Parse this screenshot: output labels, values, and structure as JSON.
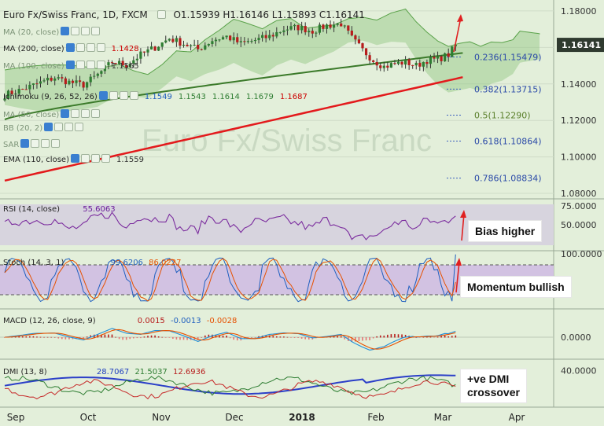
{
  "header": {
    "symbol": "Euro Fx/Swiss Franc, 1D, FXCM",
    "ohlc": "O1.15939  H1.16146  L1.15893  C1.16141"
  },
  "indicators": [
    {
      "label": "MA (20, close)"
    },
    {
      "label": "MA (200, close)",
      "values": [
        "1.1428"
      ],
      "colors": [
        "#cc0000"
      ]
    },
    {
      "label": "MA (100, close)",
      "values": [
        "1.1565"
      ],
      "colors": [
        "#333333"
      ]
    },
    {
      "label": "Ichimoku (9, 26, 52, 26)",
      "values": [
        "1.1549",
        "1.1543",
        "1.1614",
        "1.1679",
        "1.1687"
      ],
      "colors": [
        "#1f5fbf",
        "#2e7d32",
        "#2e7d32",
        "#2e7d32",
        "#cc0000"
      ]
    },
    {
      "label": "MA (50, close)"
    },
    {
      "label": "BB (20, 2)"
    },
    {
      "label": "SAR"
    },
    {
      "label": "EMA (110, close)",
      "values": [
        "1.1559"
      ],
      "colors": [
        "#333333"
      ]
    }
  ],
  "price_label": "1.16141",
  "watermark": "Euro Fx/Swiss Franc",
  "annotations": {
    "bias": "Bias higher",
    "momentum": "Momentum bullish",
    "dmi_line1": "+ve DMI",
    "dmi_line2": "crossover"
  },
  "chart_data": [
    {
      "type": "candlestick",
      "title": "Euro Fx/Swiss Franc, 1D, FXCM",
      "x_ticks": [
        "Sep",
        "Oct",
        "Nov",
        "Dec",
        "2018",
        "Feb",
        "Mar",
        "Apr"
      ],
      "y_ticks": [
        "1.18000",
        "1.16000",
        "1.14000",
        "1.12000",
        "1.10000",
        "1.08000"
      ],
      "ylim": [
        1.077,
        1.186
      ],
      "last": 1.16141,
      "close_path": [
        [
          0,
          1.134
        ],
        [
          5,
          1.137
        ],
        [
          9,
          1.14
        ],
        [
          14,
          1.1435
        ],
        [
          18,
          1.141
        ],
        [
          22,
          1.1395
        ],
        [
          26,
          1.145
        ],
        [
          30,
          1.152
        ],
        [
          34,
          1.1505
        ],
        [
          38,
          1.156
        ],
        [
          42,
          1.16
        ],
        [
          46,
          1.165
        ],
        [
          50,
          1.162
        ],
        [
          54,
          1.159
        ],
        [
          58,
          1.164
        ],
        [
          62,
          1.166
        ],
        [
          66,
          1.162
        ],
        [
          70,
          1.164
        ],
        [
          74,
          1.166
        ],
        [
          78,
          1.17
        ],
        [
          82,
          1.171
        ],
        [
          86,
          1.169
        ],
        [
          90,
          1.172
        ],
        [
          94,
          1.173
        ],
        [
          97,
          1.165
        ],
        [
          100,
          1.1585
        ],
        [
          103,
          1.153
        ],
        [
          106,
          1.1495
        ],
        [
          109,
          1.151
        ],
        [
          112,
          1.152
        ],
        [
          115,
          1.15
        ],
        [
          118,
          1.153
        ],
        [
          121,
          1.1535
        ],
        [
          124,
          1.156
        ],
        [
          126,
          1.1614
        ]
      ],
      "fibonacci": [
        {
          "label": "0.236(1.15479)",
          "value": 1.15479
        },
        {
          "label": "0.382(1.13715)",
          "value": 1.13715
        },
        {
          "label": "0.5(1.12290)",
          "value": 1.1229
        },
        {
          "label": "0.618(1.10864)",
          "value": 1.10864
        },
        {
          "label": "0.786(1.08834)",
          "value": 1.08834
        }
      ],
      "colors": {
        "up": "#2e7d32",
        "down": "#b71c1c",
        "ma200": "#e31a1c",
        "ma100": "#3b7a2a",
        "cloud": "#8ec67f"
      }
    },
    {
      "type": "line",
      "name": "RSI (14, close)",
      "value_label": "55.6063",
      "y_ticks": [
        "75.0000",
        "50.0000"
      ],
      "ylim": [
        20,
        80
      ]
    },
    {
      "type": "line",
      "name": "Stoch (14, 3, 1)",
      "values": [
        "99.6206",
        "86.0227"
      ],
      "y_ticks": [
        "100.0000"
      ],
      "ylim": [
        0,
        100
      ]
    },
    {
      "type": "bar",
      "name": "MACD (12, 26, close, 9)",
      "values": [
        "0.0015",
        "-0.0013",
        "-0.0028"
      ],
      "y_ticks": [
        "0.0000"
      ]
    },
    {
      "type": "line",
      "name": "DMI (13, 8)",
      "values": [
        "28.7067",
        "21.5037",
        "12.6936"
      ],
      "y_ticks": [
        "40.0000"
      ],
      "ylim": [
        0,
        50
      ]
    }
  ],
  "sub_legends": {
    "rsi": {
      "label": "RSI (14, close)",
      "v1": "55.6063"
    },
    "stoch": {
      "label": "Stoch (14, 3, 1)",
      "v1": "99.6206",
      "v2": "86.0227"
    },
    "macd": {
      "label": "MACD (12, 26, close, 9)",
      "v1": "0.0015",
      "v2": "-0.0013",
      "v3": "-0.0028"
    },
    "dmi": {
      "label": "DMI (13, 8)",
      "v1": "28.7067",
      "v2": "21.5037",
      "v3": "12.6936"
    }
  }
}
